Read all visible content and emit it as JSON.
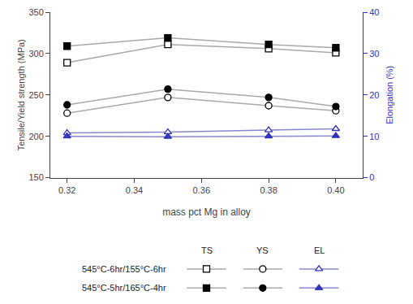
{
  "chart_data": {
    "type": "line",
    "xlabel": "mass pct Mg in alloy",
    "ylabel": "Tensile/Yield strength (MPa)",
    "y2label": "Elongation (%)",
    "x": [
      0.32,
      0.35,
      0.38,
      0.4
    ],
    "xlim": [
      0.315,
      0.408
    ],
    "xticks": [
      0.32,
      0.34,
      0.36,
      0.38,
      {
        "value": 0.4,
        "label": "0.40"
      }
    ],
    "ylim": [
      150,
      350
    ],
    "yticks": [
      150,
      200,
      250,
      300,
      350
    ],
    "y2lim": [
      0,
      40
    ],
    "y2ticks": [
      0,
      10,
      20,
      30,
      40
    ],
    "grid": false,
    "legend": "lower center",
    "series": [
      {
        "name": "TS",
        "group": "545°C-6hr/155°C-6hr",
        "color": "#aaaaaa",
        "marker_color": "#000000",
        "marker": "square-open",
        "values": [
          289,
          311,
          306,
          301
        ]
      },
      {
        "name": "YS",
        "group": "545°C-6hr/155°C-6hr",
        "color": "#aaaaaa",
        "marker_color": "#000000",
        "marker": "circle-open",
        "values": [
          228,
          247,
          237,
          231
        ]
      },
      {
        "name": "EL",
        "group": "545°C-6hr/155°C-6hr",
        "color": "#8888cc",
        "marker_color": "#3333bb",
        "marker": "triangle-up-open",
        "axis": "y2",
        "values": [
          10.8,
          11.0,
          11.5,
          11.8
        ]
      },
      {
        "name": "TS",
        "group": "545°C-5hr/165°C-4hr",
        "color": "#aaaaaa",
        "marker_color": "#000000",
        "marker": "square",
        "values": [
          309,
          319,
          311,
          307
        ]
      },
      {
        "name": "YS",
        "group": "545°C-5hr/165°C-4hr",
        "color": "#aaaaaa",
        "marker_color": "#000000",
        "marker": "circle",
        "values": [
          238,
          257,
          247,
          236
        ]
      },
      {
        "name": "EL",
        "group": "545°C-5hr/165°C-4hr",
        "color": "#8888cc",
        "marker_color": "#3333bb",
        "marker": "triangle-up",
        "axis": "y2",
        "values": [
          10.0,
          9.9,
          10.0,
          10.1
        ]
      }
    ]
  }
}
